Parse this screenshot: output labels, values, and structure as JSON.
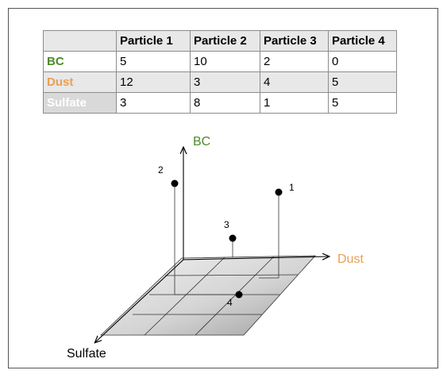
{
  "colors": {
    "bc": "#4e8a2a",
    "dust": "#e8a055",
    "sulfate": "#ffffff",
    "plane": "#c8c8c8"
  },
  "table": {
    "columns": [
      "",
      "Particle 1",
      "Particle 2",
      "Particle 3",
      "Particle 4"
    ],
    "rows": [
      {
        "label": "BC",
        "values": [
          "5",
          "10",
          "2",
          "0"
        ]
      },
      {
        "label": "Dust",
        "values": [
          "12",
          "3",
          "4",
          "5"
        ]
      },
      {
        "label": "Sulfate",
        "values": [
          "3",
          "8",
          "1",
          "5"
        ]
      }
    ]
  },
  "diagram": {
    "axes": {
      "bc": "BC",
      "dust": "Dust",
      "sulfate": "Sulfate"
    },
    "points": [
      {
        "label": "1"
      },
      {
        "label": "2"
      },
      {
        "label": "3"
      },
      {
        "label": "4"
      }
    ]
  }
}
